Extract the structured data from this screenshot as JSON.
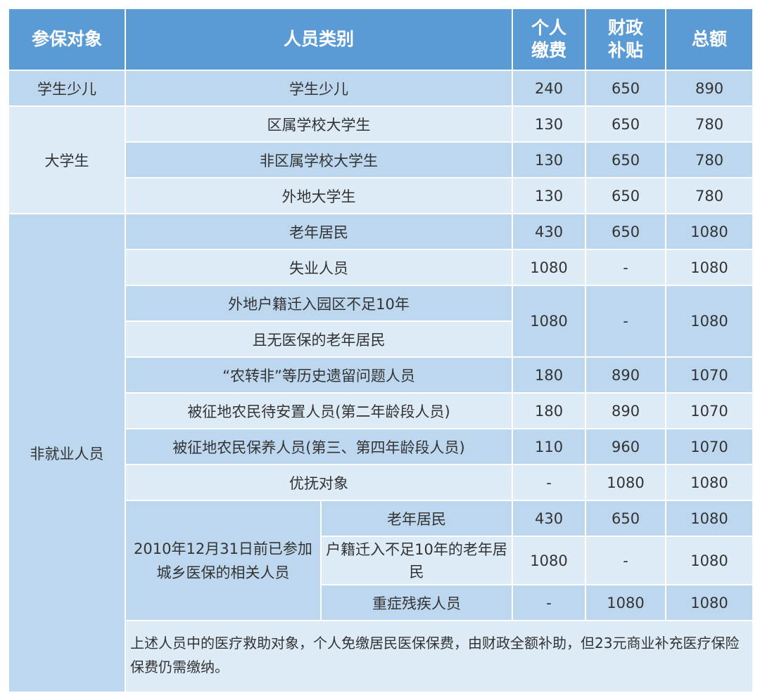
{
  "headers": {
    "target": "参保对象",
    "category": "人员类别",
    "personal": "个人\n缴费",
    "subsidy": "财政\n补贴",
    "total": "总额"
  },
  "groups": {
    "g1": "学生少儿",
    "g2": "大学生",
    "g3": "非就业人员",
    "sub": "2010年12月31日前已参加城乡医保的相关人员"
  },
  "rows": [
    {
      "cat": "学生少儿",
      "p": "240",
      "s": "650",
      "t": "890"
    },
    {
      "cat": "区属学校大学生",
      "p": "130",
      "s": "650",
      "t": "780"
    },
    {
      "cat": "非区属学校大学生",
      "p": "130",
      "s": "650",
      "t": "780"
    },
    {
      "cat": "外地大学生",
      "p": "130",
      "s": "650",
      "t": "780"
    },
    {
      "cat": "老年居民",
      "p": "430",
      "s": "650",
      "t": "1080"
    },
    {
      "cat": "失业人员",
      "p": "1080",
      "s": "-",
      "t": "1080"
    },
    {
      "cat": "外地户籍迁入园区不足10年",
      "cat2": "且无医保的老年居民",
      "p": "1080",
      "s": "-",
      "t": "1080"
    },
    {
      "cat": "“农转非”等历史遗留问题人员",
      "p": "180",
      "s": "890",
      "t": "1070"
    },
    {
      "cat": "被征地农民待安置人员(第二年龄段人员)",
      "p": "180",
      "s": "890",
      "t": "1070"
    },
    {
      "cat": "被征地农民保养人员(第三、第四年龄段人员)",
      "p": "110",
      "s": "960",
      "t": "1070"
    },
    {
      "cat": "优抚对象",
      "p": "-",
      "s": "1080",
      "t": "1080"
    },
    {
      "cat": "老年居民",
      "p": "430",
      "s": "650",
      "t": "1080"
    },
    {
      "cat": "户籍迁入不足10年的老年居民",
      "p": "1080",
      "s": "-",
      "t": "1080"
    },
    {
      "cat": "重症残疾人员",
      "p": "-",
      "s": "1080",
      "t": "1080"
    }
  ],
  "footnote": "上述人员中的医疗救助对象，个人免缴居民医保保费，由财政全额补助，但23元商业补充医疗保险保费仍需缴纳。",
  "colors": {
    "header": "#5b9bd5",
    "row_dark": "#bdd7ee",
    "row_light": "#ddebf7"
  }
}
